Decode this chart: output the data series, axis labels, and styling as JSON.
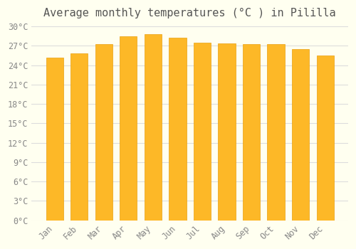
{
  "title": "Average monthly temperatures (°C ) in Pililla",
  "months": [
    "Jan",
    "Feb",
    "Mar",
    "Apr",
    "May",
    "Jun",
    "Jul",
    "Aug",
    "Sep",
    "Oct",
    "Nov",
    "Dec"
  ],
  "values": [
    25.2,
    25.8,
    27.2,
    28.5,
    28.8,
    28.2,
    27.5,
    27.4,
    27.3,
    27.2,
    26.5,
    25.5
  ],
  "bar_color_top": "#FDB827",
  "bar_color_bottom": "#FDD06A",
  "bar_edge_color": "#E8A010",
  "background_color": "#FFFFF0",
  "grid_color": "#DDDDDD",
  "title_color": "#555555",
  "tick_color": "#888888",
  "ylim": [
    0,
    30
  ],
  "yticks": [
    0,
    3,
    6,
    9,
    12,
    15,
    18,
    21,
    24,
    27,
    30
  ],
  "ytick_labels": [
    "0°C",
    "3°C",
    "6°C",
    "9°C",
    "12°C",
    "15°C",
    "18°C",
    "21°C",
    "24°C",
    "27°C",
    "30°C"
  ],
  "title_fontsize": 11,
  "tick_fontsize": 8.5,
  "fig_width": 5.0,
  "fig_height": 3.5,
  "dpi": 100
}
